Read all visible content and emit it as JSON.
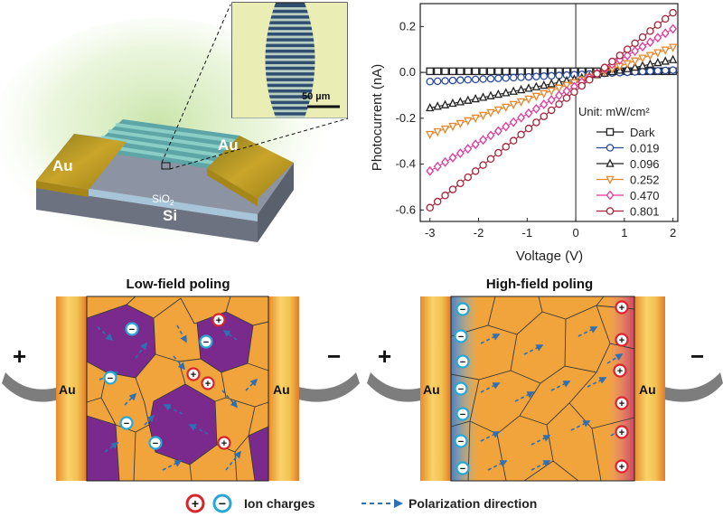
{
  "device": {
    "electrode_left": "Au",
    "electrode_right": "Au",
    "oxide_label": "SiO",
    "oxide_subscript": "2",
    "substrate_label": "Si",
    "scale_bar_label": "50 µm"
  },
  "chart_data": {
    "type": "line",
    "xlabel": "Voltage (V)",
    "ylabel": "Photocurrent (nA)",
    "xlim": [
      -3.2,
      2.1
    ],
    "ylim": [
      -0.65,
      0.3
    ],
    "xticks": [
      -3,
      -2,
      -1,
      0,
      1,
      2
    ],
    "yticks": [
      -0.6,
      -0.4,
      -0.2,
      0.0,
      0.2
    ],
    "ytick_labels": [
      "-0.6",
      "-0.4",
      "-0.2",
      "0.0",
      "0.2"
    ],
    "legend_title": "Unit: mW/cm²",
    "legend_position": "bottom-right",
    "grid": false,
    "series": [
      {
        "name": "Dark",
        "color": "#222222",
        "marker": "square",
        "x": [
          -3,
          2
        ],
        "y": [
          0.005,
          0.005
        ]
      },
      {
        "name": "0.019",
        "color": "#2d4a9a",
        "marker": "circle",
        "x": [
          -3,
          2
        ],
        "y": [
          -0.04,
          0.01
        ]
      },
      {
        "name": "0.096",
        "color": "#222222",
        "marker": "triangle-up",
        "x": [
          -3,
          2
        ],
        "y": [
          -0.155,
          0.055
        ]
      },
      {
        "name": "0.252",
        "color": "#e8862a",
        "marker": "triangle-down",
        "x": [
          -3,
          2
        ],
        "y": [
          -0.27,
          0.11
        ]
      },
      {
        "name": "0.470",
        "color": "#e0389a",
        "marker": "diamond",
        "x": [
          -3,
          2
        ],
        "y": [
          -0.43,
          0.19
        ]
      },
      {
        "name": "0.801",
        "color": "#a5243a",
        "marker": "circle",
        "x": [
          -3,
          2
        ],
        "y": [
          -0.59,
          0.26
        ]
      }
    ]
  },
  "poling": {
    "low_title": "Low-field poling",
    "high_title": "High-field poling",
    "electrode_label": "Au",
    "plus_sign": "+",
    "minus_sign": "−",
    "ion_plus_symbol": "+",
    "ion_minus_symbol": "−"
  },
  "legend": {
    "ion_charges": "Ion charges",
    "polarization": "Polarization direction"
  },
  "colors": {
    "gold_dark": "#c9a020",
    "gold_light": "#f4d96a",
    "grain_orange": "#f2a43c",
    "domain_purple": "#7a2a8c",
    "arrow_blue": "#2f6fb3",
    "ion_plus": "#d7262b",
    "ion_minus": "#27a6d8"
  }
}
